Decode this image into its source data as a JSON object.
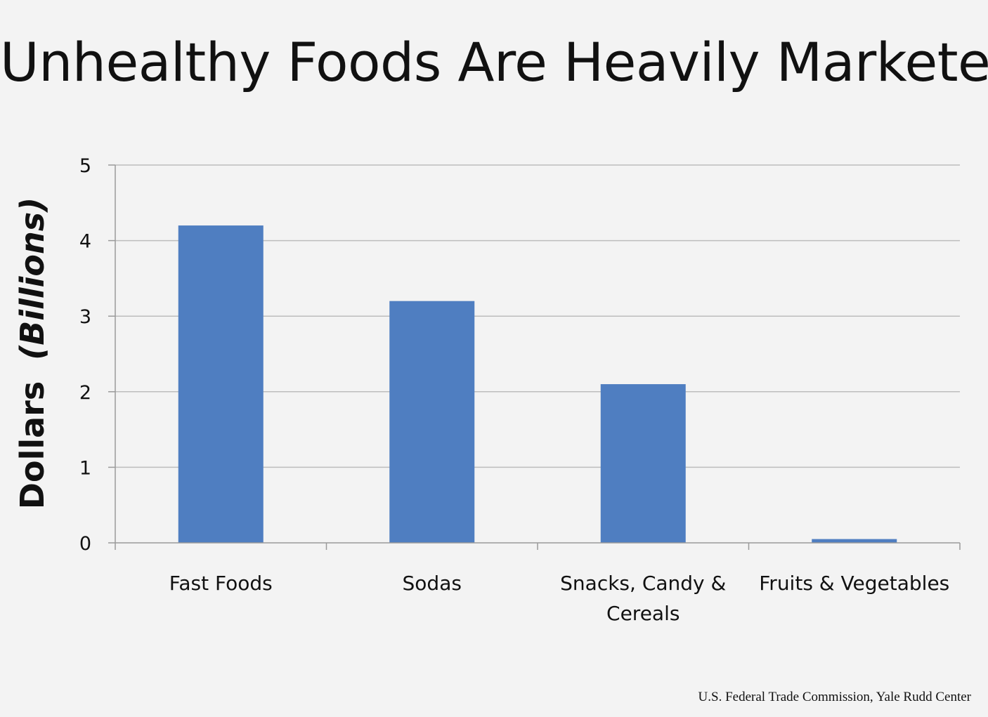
{
  "slide": {
    "title": "Unhealthy Foods Are Heavily Marketed",
    "source": "U.S. Federal Trade Commission, Yale Rudd Center"
  },
  "colors": {
    "bar": "#4f7ec1",
    "gridline": "#bdbdbd",
    "axis": "#9a9a9a",
    "text": "#111111",
    "background": "#f3f3f3"
  },
  "chart_data": {
    "type": "bar",
    "title": "Unhealthy Foods Are Heavily Marketed",
    "ylabel": {
      "main": "Dollars",
      "italic": "(Billions)"
    },
    "xlabel": "",
    "categories": [
      [
        "Fast Foods"
      ],
      [
        "Sodas"
      ],
      [
        "Snacks, Candy &",
        "Cereals"
      ],
      [
        "Fruits & Vegetables"
      ]
    ],
    "values": [
      4.2,
      3.2,
      2.1,
      0.05
    ],
    "ylim": [
      0,
      5
    ],
    "yticks": [
      0,
      1,
      2,
      3,
      4,
      5
    ],
    "grid": true,
    "legend": "none"
  }
}
